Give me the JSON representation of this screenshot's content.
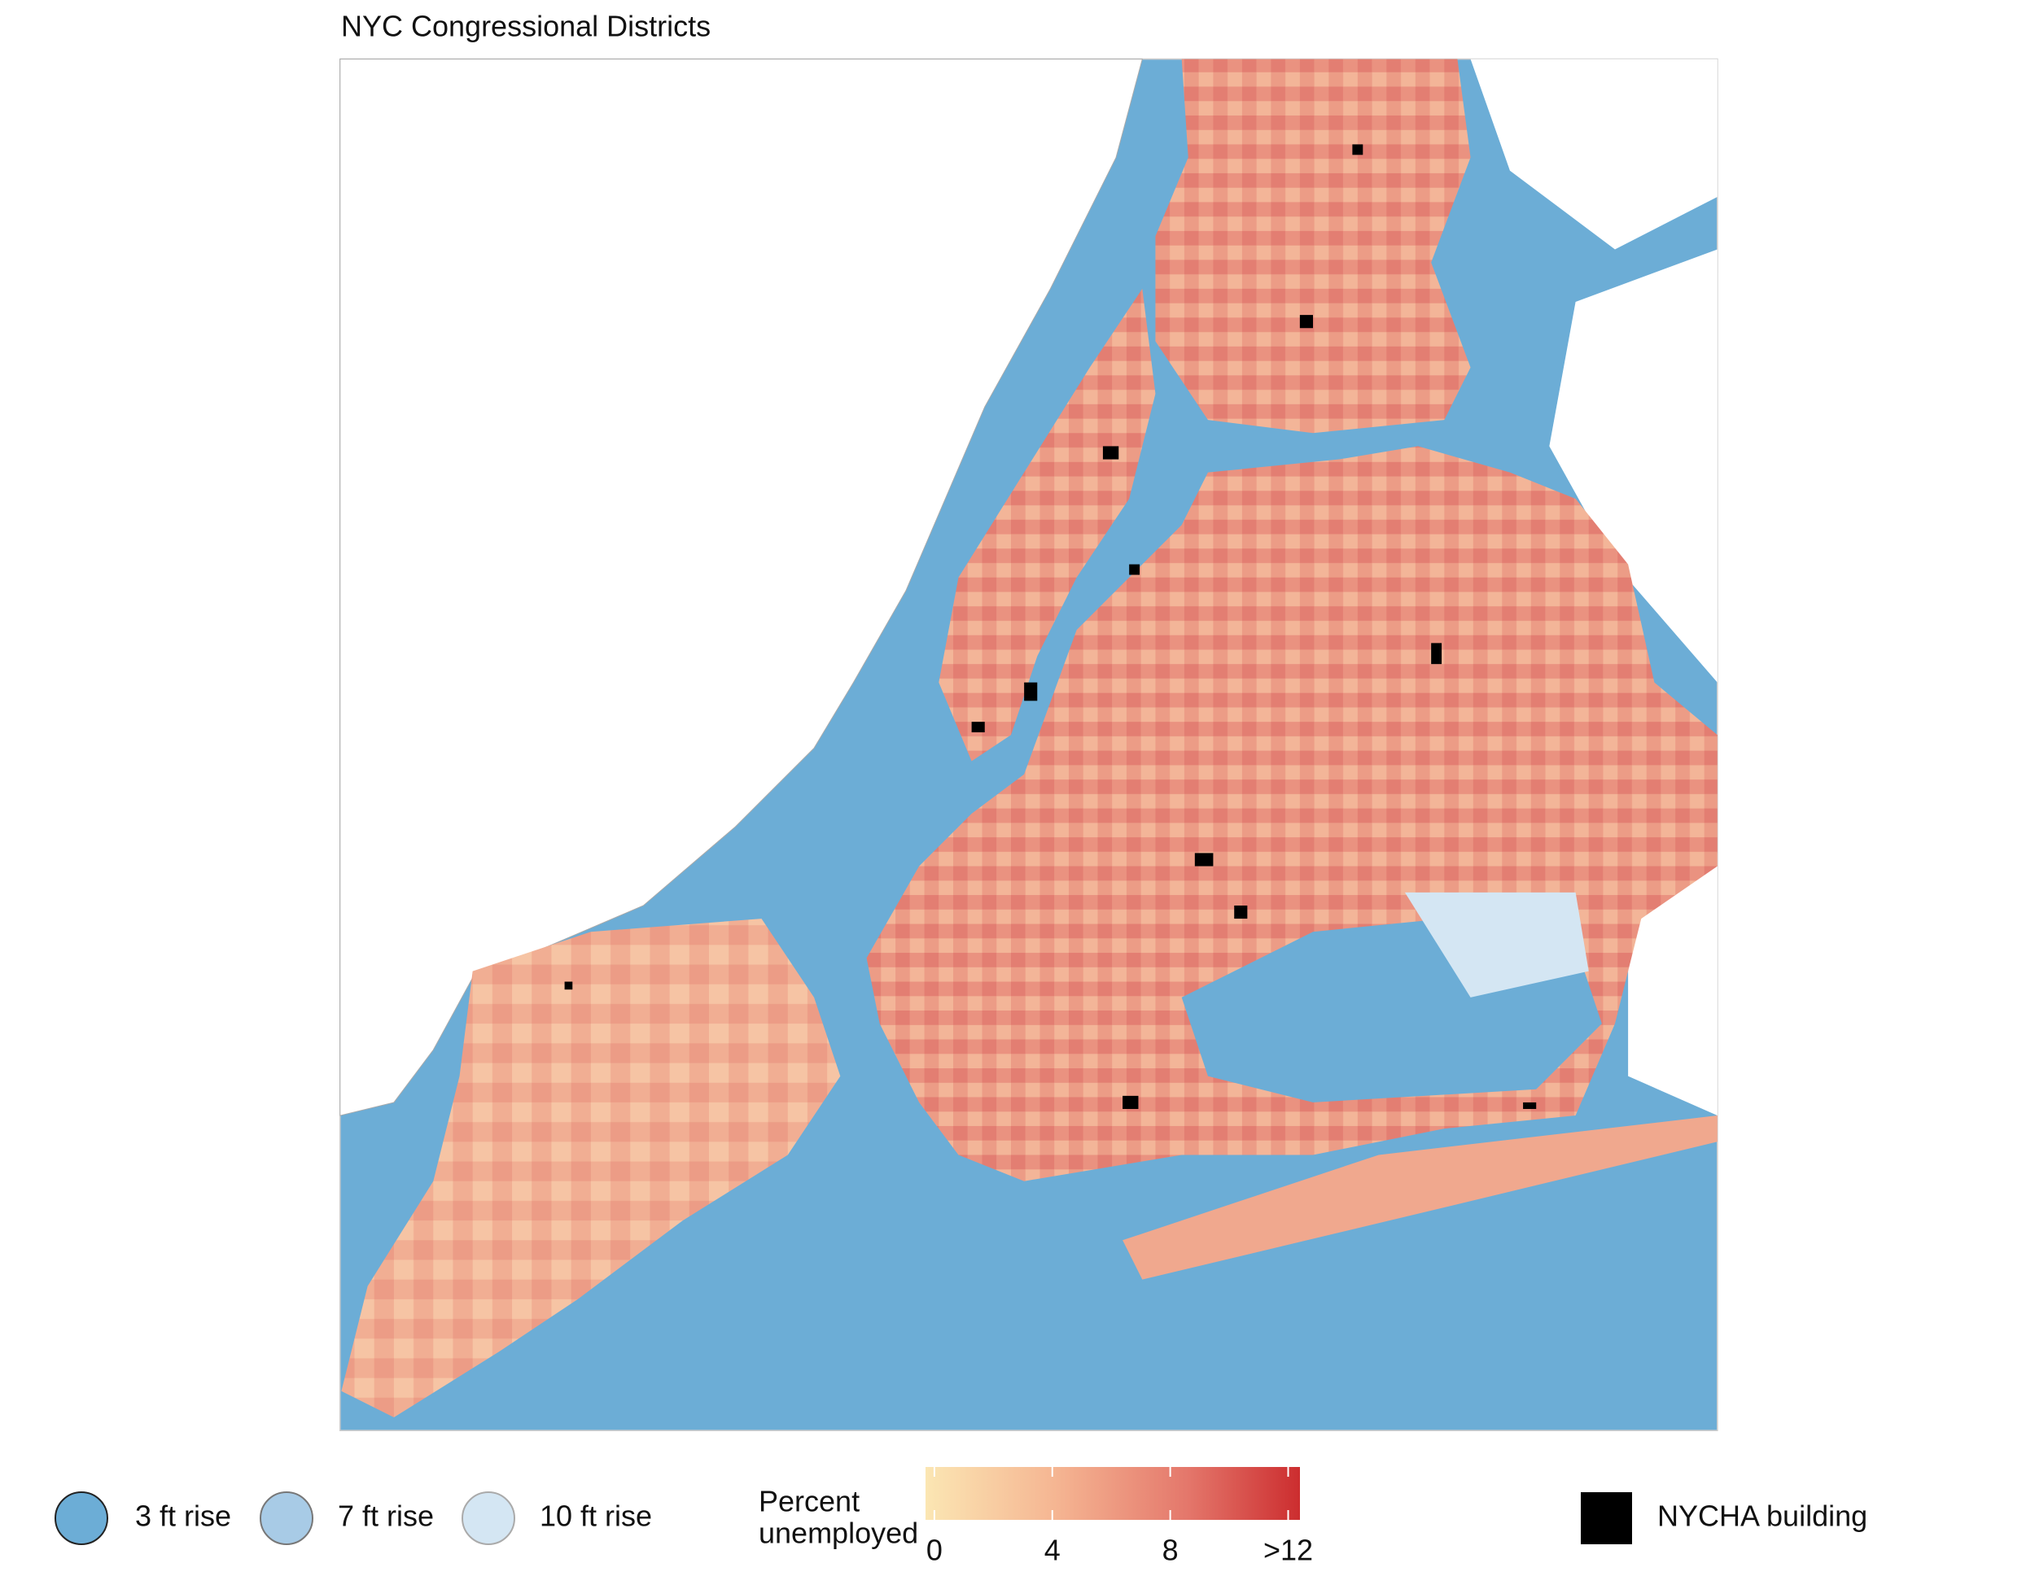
{
  "title": "NYC Congressional Districts",
  "legend": {
    "items": [
      "3 ft rise",
      "7 ft rise",
      "10 ft rise"
    ],
    "building": "NYCHA building"
  },
  "colorbar": {
    "label_lines": [
      "Percent",
      "unemployed"
    ],
    "lim": [
      -0.3,
      12.4
    ],
    "ticks": [
      0,
      4,
      8,
      {
        "value": 12,
        "label": ">12"
      }
    ]
  }
}
